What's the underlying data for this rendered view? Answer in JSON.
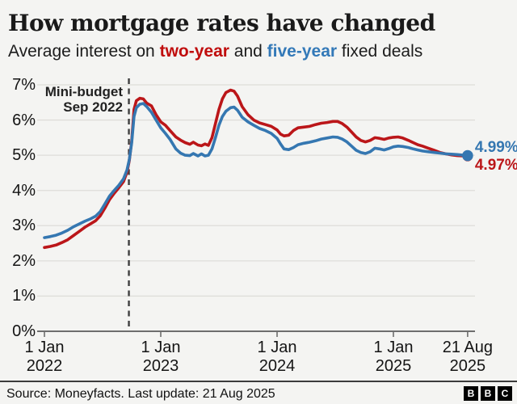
{
  "header": {
    "title": "How mortgage rates have changed",
    "subtitle": {
      "prefix": "Average interest on ",
      "two_year": "two-year",
      "middle": " and ",
      "five_year": "five-year",
      "suffix": " fixed deals"
    }
  },
  "colors": {
    "red": "#bb1619",
    "blue": "#3577b1",
    "grid": "#deddd9",
    "axis": "#6e6e6e",
    "dashed": "#3f3f3f"
  },
  "chart_data": {
    "type": "line",
    "title": "How mortgage rates have changed",
    "subtitle": "Average interest on two-year and five-year fixed deals",
    "ylim": [
      0,
      7
    ],
    "grid": true,
    "yticks": [
      {
        "v": 0,
        "label": "0%"
      },
      {
        "v": 1,
        "label": "1%"
      },
      {
        "v": 2,
        "label": "2%"
      },
      {
        "v": 3,
        "label": "3%"
      },
      {
        "v": 4,
        "label": "4%"
      },
      {
        "v": 5,
        "label": "5%"
      },
      {
        "v": 6,
        "label": "6%"
      },
      {
        "v": 7,
        "label": "7%"
      }
    ],
    "xticks": [
      {
        "t": 2022.0,
        "line1": "1 Jan",
        "line2": "2022"
      },
      {
        "t": 2023.0,
        "line1": "1 Jan",
        "line2": "2023"
      },
      {
        "t": 2024.0,
        "line1": "1 Jan",
        "line2": "2024"
      },
      {
        "t": 2025.0,
        "line1": "1 Jan",
        "line2": "2025"
      },
      {
        "t": 2025.638,
        "line1": "21 Aug",
        "line2": "2025"
      }
    ],
    "annotation": {
      "line1": "Mini-budget",
      "line2": "Sep 2022",
      "t": 2022.726
    },
    "series": [
      {
        "name": "two-year",
        "color_key": "red",
        "end_label": "4.97%",
        "end_value": 4.97,
        "points": [
          [
            2022.0,
            2.38
          ],
          [
            2022.05,
            2.41
          ],
          [
            2022.1,
            2.45
          ],
          [
            2022.15,
            2.52
          ],
          [
            2022.2,
            2.6
          ],
          [
            2022.25,
            2.72
          ],
          [
            2022.3,
            2.84
          ],
          [
            2022.35,
            2.96
          ],
          [
            2022.4,
            3.06
          ],
          [
            2022.44,
            3.14
          ],
          [
            2022.48,
            3.28
          ],
          [
            2022.52,
            3.5
          ],
          [
            2022.56,
            3.74
          ],
          [
            2022.6,
            3.92
          ],
          [
            2022.64,
            4.08
          ],
          [
            2022.68,
            4.25
          ],
          [
            2022.71,
            4.52
          ],
          [
            2022.73,
            4.85
          ],
          [
            2022.75,
            5.4
          ],
          [
            2022.77,
            6.3
          ],
          [
            2022.79,
            6.55
          ],
          [
            2022.82,
            6.62
          ],
          [
            2022.85,
            6.6
          ],
          [
            2022.88,
            6.48
          ],
          [
            2022.92,
            6.4
          ],
          [
            2022.96,
            6.15
          ],
          [
            2023.0,
            5.95
          ],
          [
            2023.04,
            5.85
          ],
          [
            2023.08,
            5.7
          ],
          [
            2023.13,
            5.52
          ],
          [
            2023.17,
            5.43
          ],
          [
            2023.21,
            5.36
          ],
          [
            2023.25,
            5.31
          ],
          [
            2023.28,
            5.37
          ],
          [
            2023.32,
            5.29
          ],
          [
            2023.35,
            5.27
          ],
          [
            2023.38,
            5.32
          ],
          [
            2023.41,
            5.28
          ],
          [
            2023.44,
            5.5
          ],
          [
            2023.47,
            5.9
          ],
          [
            2023.5,
            6.3
          ],
          [
            2023.53,
            6.6
          ],
          [
            2023.56,
            6.78
          ],
          [
            2023.6,
            6.85
          ],
          [
            2023.63,
            6.82
          ],
          [
            2023.66,
            6.68
          ],
          [
            2023.7,
            6.38
          ],
          [
            2023.75,
            6.15
          ],
          [
            2023.8,
            6.0
          ],
          [
            2023.85,
            5.92
          ],
          [
            2023.9,
            5.87
          ],
          [
            2023.95,
            5.82
          ],
          [
            2024.0,
            5.72
          ],
          [
            2024.03,
            5.6
          ],
          [
            2024.06,
            5.55
          ],
          [
            2024.1,
            5.57
          ],
          [
            2024.14,
            5.7
          ],
          [
            2024.18,
            5.78
          ],
          [
            2024.23,
            5.8
          ],
          [
            2024.28,
            5.82
          ],
          [
            2024.33,
            5.87
          ],
          [
            2024.38,
            5.91
          ],
          [
            2024.43,
            5.93
          ],
          [
            2024.48,
            5.96
          ],
          [
            2024.52,
            5.96
          ],
          [
            2024.56,
            5.9
          ],
          [
            2024.6,
            5.8
          ],
          [
            2024.64,
            5.66
          ],
          [
            2024.68,
            5.52
          ],
          [
            2024.72,
            5.42
          ],
          [
            2024.76,
            5.38
          ],
          [
            2024.8,
            5.42
          ],
          [
            2024.84,
            5.5
          ],
          [
            2024.88,
            5.48
          ],
          [
            2024.92,
            5.45
          ],
          [
            2024.96,
            5.49
          ],
          [
            2025.0,
            5.51
          ],
          [
            2025.04,
            5.52
          ],
          [
            2025.08,
            5.49
          ],
          [
            2025.13,
            5.42
          ],
          [
            2025.17,
            5.36
          ],
          [
            2025.21,
            5.3
          ],
          [
            2025.25,
            5.26
          ],
          [
            2025.3,
            5.2
          ],
          [
            2025.35,
            5.14
          ],
          [
            2025.4,
            5.08
          ],
          [
            2025.45,
            5.04
          ],
          [
            2025.5,
            5.01
          ],
          [
            2025.55,
            4.99
          ],
          [
            2025.6,
            4.98
          ],
          [
            2025.638,
            4.97
          ]
        ]
      },
      {
        "name": "five-year",
        "color_key": "blue",
        "end_label": "4.99%",
        "end_value": 4.99,
        "points": [
          [
            2022.0,
            2.66
          ],
          [
            2022.05,
            2.69
          ],
          [
            2022.1,
            2.73
          ],
          [
            2022.15,
            2.79
          ],
          [
            2022.2,
            2.87
          ],
          [
            2022.25,
            2.97
          ],
          [
            2022.3,
            3.05
          ],
          [
            2022.35,
            3.13
          ],
          [
            2022.4,
            3.2
          ],
          [
            2022.44,
            3.27
          ],
          [
            2022.48,
            3.4
          ],
          [
            2022.52,
            3.62
          ],
          [
            2022.56,
            3.84
          ],
          [
            2022.6,
            4.0
          ],
          [
            2022.64,
            4.15
          ],
          [
            2022.68,
            4.33
          ],
          [
            2022.71,
            4.58
          ],
          [
            2022.73,
            4.88
          ],
          [
            2022.75,
            5.35
          ],
          [
            2022.77,
            6.1
          ],
          [
            2022.79,
            6.35
          ],
          [
            2022.82,
            6.45
          ],
          [
            2022.85,
            6.47
          ],
          [
            2022.88,
            6.38
          ],
          [
            2022.92,
            6.22
          ],
          [
            2022.96,
            6.0
          ],
          [
            2023.0,
            5.78
          ],
          [
            2023.04,
            5.62
          ],
          [
            2023.08,
            5.45
          ],
          [
            2023.13,
            5.18
          ],
          [
            2023.17,
            5.06
          ],
          [
            2023.21,
            5.0
          ],
          [
            2023.25,
            4.99
          ],
          [
            2023.28,
            5.05
          ],
          [
            2023.32,
            4.98
          ],
          [
            2023.35,
            5.04
          ],
          [
            2023.38,
            4.98
          ],
          [
            2023.41,
            5.0
          ],
          [
            2023.44,
            5.18
          ],
          [
            2023.47,
            5.5
          ],
          [
            2023.5,
            5.85
          ],
          [
            2023.53,
            6.1
          ],
          [
            2023.56,
            6.25
          ],
          [
            2023.6,
            6.35
          ],
          [
            2023.63,
            6.37
          ],
          [
            2023.66,
            6.28
          ],
          [
            2023.7,
            6.08
          ],
          [
            2023.75,
            5.95
          ],
          [
            2023.8,
            5.85
          ],
          [
            2023.85,
            5.76
          ],
          [
            2023.9,
            5.7
          ],
          [
            2023.95,
            5.62
          ],
          [
            2024.0,
            5.48
          ],
          [
            2024.03,
            5.32
          ],
          [
            2024.06,
            5.18
          ],
          [
            2024.1,
            5.16
          ],
          [
            2024.14,
            5.22
          ],
          [
            2024.18,
            5.3
          ],
          [
            2024.23,
            5.34
          ],
          [
            2024.28,
            5.37
          ],
          [
            2024.33,
            5.41
          ],
          [
            2024.38,
            5.46
          ],
          [
            2024.43,
            5.49
          ],
          [
            2024.48,
            5.52
          ],
          [
            2024.52,
            5.51
          ],
          [
            2024.56,
            5.46
          ],
          [
            2024.6,
            5.38
          ],
          [
            2024.64,
            5.26
          ],
          [
            2024.68,
            5.14
          ],
          [
            2024.72,
            5.08
          ],
          [
            2024.76,
            5.05
          ],
          [
            2024.8,
            5.1
          ],
          [
            2024.84,
            5.2
          ],
          [
            2024.88,
            5.18
          ],
          [
            2024.92,
            5.15
          ],
          [
            2024.96,
            5.19
          ],
          [
            2025.0,
            5.24
          ],
          [
            2025.04,
            5.26
          ],
          [
            2025.08,
            5.25
          ],
          [
            2025.13,
            5.22
          ],
          [
            2025.17,
            5.18
          ],
          [
            2025.21,
            5.15
          ],
          [
            2025.25,
            5.12
          ],
          [
            2025.3,
            5.1
          ],
          [
            2025.35,
            5.08
          ],
          [
            2025.4,
            5.06
          ],
          [
            2025.45,
            5.04
          ],
          [
            2025.5,
            5.03
          ],
          [
            2025.55,
            5.02
          ],
          [
            2025.6,
            5.0
          ],
          [
            2025.638,
            4.99
          ]
        ]
      }
    ]
  },
  "footer": {
    "source": "Source: Moneyfacts. Last update: 21 Aug 2025",
    "logo_letters": [
      "B",
      "B",
      "C"
    ]
  }
}
